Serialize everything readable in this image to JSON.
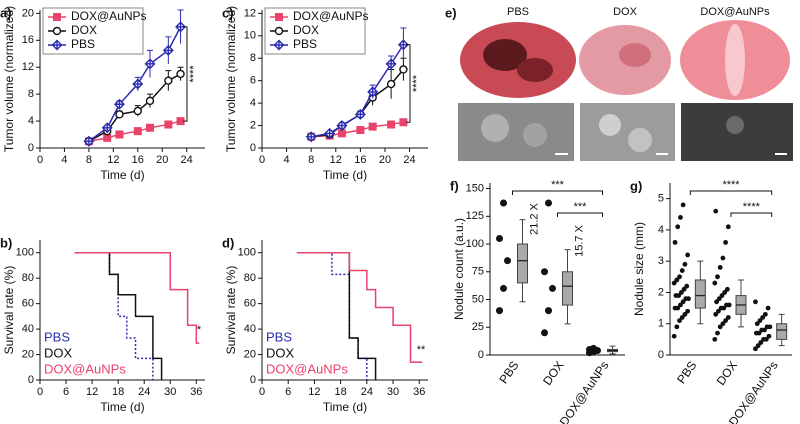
{
  "chart_data": [
    {
      "type": "line",
      "panel": "a)",
      "xlabel": "Time (d)",
      "ylabel": "Tumor volume (normalized)",
      "x": [
        8,
        11,
        13,
        16,
        18,
        21,
        23
      ],
      "xlim": [
        0,
        27
      ],
      "xticks": [
        0,
        4,
        8,
        12,
        16,
        20,
        24
      ],
      "ylim": [
        0,
        20.5
      ],
      "yticks": [
        0,
        4,
        8,
        12,
        16,
        20
      ],
      "series": [
        {
          "name": "DOX@AuNPs",
          "color": "#e8436b",
          "marker": "square",
          "values": [
            1,
            1.5,
            2,
            2.5,
            3,
            3.5,
            4
          ],
          "errors": [
            0,
            0.2,
            0.2,
            0.3,
            0.3,
            0.3,
            0.4
          ]
        },
        {
          "name": "DOX",
          "color": "#111111",
          "marker": "circle",
          "values": [
            1,
            2.5,
            5,
            5.5,
            7,
            10,
            11
          ],
          "errors": [
            0,
            0.3,
            0.5,
            0.8,
            1,
            1.5,
            1
          ]
        },
        {
          "name": "PBS",
          "color": "#2b2bb0",
          "marker": "diamond",
          "values": [
            1,
            3,
            6.5,
            9.5,
            12.5,
            14.5,
            18
          ],
          "errors": [
            0,
            0.3,
            0.5,
            1,
            2,
            2,
            2.5
          ]
        }
      ],
      "annotations": [
        "****"
      ]
    },
    {
      "type": "step",
      "panel": "b)",
      "xlabel": "Time (d)",
      "ylabel": "Survival rate (%)",
      "x": [
        8,
        16,
        18,
        20,
        22,
        24,
        26,
        28,
        30,
        32,
        34,
        36
      ],
      "xlim": [
        0,
        38
      ],
      "xticks": [
        0,
        6,
        12,
        18,
        24,
        30,
        36
      ],
      "ylim": [
        0,
        110
      ],
      "yticks": [
        0,
        20,
        40,
        60,
        80,
        100
      ],
      "series": [
        {
          "name": "PBS",
          "color": "#2b2bb0",
          "dashed": true,
          "values": [
            100,
            83,
            50,
            33,
            17,
            17,
            0,
            null,
            null,
            null,
            null,
            null
          ]
        },
        {
          "name": "DOX",
          "color": "#111111",
          "values": [
            100,
            83,
            67,
            67,
            50,
            50,
            17,
            0,
            null,
            null,
            null,
            null
          ]
        },
        {
          "name": "DOX@AuNPs",
          "color": "#e8436b",
          "values": [
            100,
            100,
            100,
            100,
            100,
            100,
            100,
            100,
            71,
            71,
            43,
            29
          ]
        }
      ],
      "annotations": [
        "*"
      ]
    },
    {
      "type": "line",
      "panel": "c)",
      "xlabel": "Time (d)",
      "ylabel": "Tumor volume (normalized)",
      "x": [
        8,
        11,
        13,
        16,
        18,
        21,
        23
      ],
      "xlim": [
        0,
        27
      ],
      "xticks": [
        0,
        4,
        8,
        12,
        16,
        20,
        24
      ],
      "ylim": [
        0,
        12.3
      ],
      "yticks": [
        0,
        2,
        4,
        6,
        8,
        10,
        12
      ],
      "series": [
        {
          "name": "DOX@AuNPs",
          "color": "#e8436b",
          "marker": "square",
          "values": [
            1,
            1.1,
            1.3,
            1.6,
            1.9,
            2.1,
            2.3
          ],
          "errors": [
            0,
            0.1,
            0.1,
            0.2,
            0.2,
            0.2,
            0.2
          ]
        },
        {
          "name": "DOX",
          "color": "#111111",
          "marker": "circle",
          "values": [
            1,
            1.2,
            2,
            3,
            4.5,
            5.7,
            7
          ],
          "errors": [
            0,
            0.1,
            0.2,
            0.3,
            0.7,
            1.3,
            1
          ]
        },
        {
          "name": "PBS",
          "color": "#2b2bb0",
          "marker": "diamond",
          "values": [
            1,
            1.3,
            2,
            3,
            5,
            7.5,
            9.2
          ],
          "errors": [
            0,
            0.1,
            0.2,
            0.3,
            0.6,
            0.7,
            1.5
          ]
        }
      ],
      "annotations": [
        "****"
      ]
    },
    {
      "type": "step",
      "panel": "d)",
      "xlabel": "Time (d)",
      "ylabel": "Survival rate (%)",
      "x": [
        8,
        16,
        18,
        20,
        22,
        24,
        26,
        28,
        30,
        32,
        34,
        36
      ],
      "xlim": [
        0,
        38
      ],
      "xticks": [
        0,
        6,
        12,
        18,
        24,
        30,
        36
      ],
      "ylim": [
        0,
        110
      ],
      "yticks": [
        0,
        20,
        40,
        60,
        80,
        100
      ],
      "series": [
        {
          "name": "PBS",
          "color": "#2b2bb0",
          "dashed": true,
          "values": [
            100,
            83,
            83,
            33,
            17,
            0,
            null,
            null,
            null,
            null,
            null,
            null
          ]
        },
        {
          "name": "DOX",
          "color": "#111111",
          "values": [
            100,
            100,
            100,
            33,
            17,
            17,
            0,
            null,
            null,
            null,
            null,
            null
          ]
        },
        {
          "name": "DOX@AuNPs",
          "color": "#e8436b",
          "values": [
            100,
            100,
            100,
            86,
            86,
            71,
            57,
            57,
            43,
            43,
            14,
            14
          ]
        }
      ],
      "annotations": [
        "**"
      ]
    },
    {
      "type": "box",
      "panel": "f)",
      "ylabel": "Nodule count (a.u.)",
      "categories": [
        "PBS",
        "DOX",
        "DOX@AuNPs"
      ],
      "ylim": [
        0,
        155
      ],
      "yticks": [
        0,
        25,
        50,
        75,
        100,
        125,
        150
      ],
      "points": [
        [
          40,
          60,
          85,
          105,
          137
        ],
        [
          20,
          40,
          60,
          75,
          137
        ],
        [
          2,
          3,
          4,
          5,
          6
        ]
      ],
      "boxes": [
        {
          "low": 48,
          "q1": 65,
          "median": 85,
          "q3": 100,
          "high": 122
        },
        {
          "low": 28,
          "q1": 45,
          "median": 62,
          "q3": 75,
          "high": 95
        },
        {
          "low": 1,
          "q1": 3,
          "median": 4,
          "q3": 5,
          "high": 8
        }
      ],
      "annotations": [
        "***",
        "***",
        "21.2 X",
        "15.7 X"
      ]
    },
    {
      "type": "box",
      "panel": "g)",
      "ylabel": "Nodule size (mm)",
      "categories": [
        "PBS",
        "DOX",
        "DOX@AuNPs"
      ],
      "ylim": [
        0,
        5.5
      ],
      "yticks": [
        0,
        1,
        2,
        3,
        4,
        5
      ],
      "points": [
        [
          0.6,
          0.9,
          1.1,
          1.2,
          1.3,
          1.4,
          1.5,
          1.5,
          1.6,
          1.7,
          1.8,
          1.8,
          1.9,
          1.9,
          2.0,
          2.1,
          2.2,
          2.3,
          2.4,
          2.5,
          2.7,
          2.9,
          3.2,
          3.6,
          4.1,
          4.4,
          4.8
        ],
        [
          0.5,
          0.7,
          0.9,
          1.0,
          1.1,
          1.2,
          1.3,
          1.4,
          1.5,
          1.5,
          1.6,
          1.6,
          1.7,
          1.8,
          1.9,
          2.0,
          2.1,
          2.3,
          2.5,
          2.8,
          3.1,
          3.6,
          4.1,
          4.6
        ],
        [
          0.2,
          0.3,
          0.4,
          0.5,
          0.5,
          0.6,
          0.7,
          0.7,
          0.8,
          0.8,
          0.9,
          0.9,
          1.0,
          1.1,
          1.2,
          1.3,
          1.5,
          1.7
        ]
      ],
      "boxes": [
        {
          "low": 1.0,
          "q1": 1.5,
          "median": 1.9,
          "q3": 2.4,
          "high": 3.0
        },
        {
          "low": 0.9,
          "q1": 1.3,
          "median": 1.6,
          "q3": 1.9,
          "high": 2.4
        },
        {
          "low": 0.3,
          "q1": 0.5,
          "median": 0.8,
          "q3": 1.0,
          "high": 1.3
        }
      ],
      "annotations": [
        "****",
        "****"
      ]
    }
  ],
  "photo_panel": {
    "label": "e)",
    "captions": [
      "PBS",
      "DOX",
      "DOX@AuNPs"
    ]
  }
}
